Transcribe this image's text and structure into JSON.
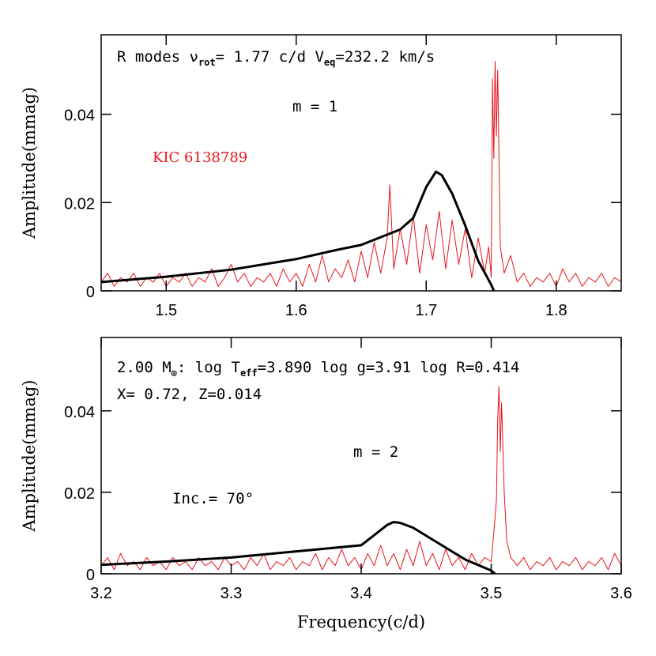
{
  "chart_data": [
    {
      "type": "line",
      "y_label": "Amplitude(mmag)",
      "xlim": [
        1.45,
        1.85
      ],
      "ylim": [
        0,
        0.058
      ],
      "xticks": [
        1.5,
        1.6,
        1.7,
        1.8
      ],
      "yticks": [
        0,
        0.02,
        0.04
      ],
      "annotations": [
        {
          "parts": [
            "R modes  ν",
            "rot",
            "= 1.77 c/d  V",
            "eq",
            "=232.2 km/s"
          ]
        },
        {
          "parts": [
            "m = 1"
          ]
        },
        {
          "parts": [
            "KIC 6138789"
          ],
          "color": "#e8141c"
        }
      ],
      "series": [
        {
          "color": "#e8141c",
          "line_width": 1,
          "x": [
            1.45,
            1.455,
            1.46,
            1.465,
            1.47,
            1.475,
            1.48,
            1.485,
            1.49,
            1.495,
            1.5,
            1.505,
            1.51,
            1.515,
            1.52,
            1.525,
            1.53,
            1.535,
            1.54,
            1.545,
            1.55,
            1.555,
            1.56,
            1.565,
            1.57,
            1.575,
            1.58,
            1.585,
            1.59,
            1.595,
            1.6,
            1.605,
            1.61,
            1.615,
            1.62,
            1.625,
            1.63,
            1.635,
            1.64,
            1.645,
            1.65,
            1.655,
            1.66,
            1.665,
            1.67,
            1.672,
            1.675,
            1.68,
            1.685,
            1.69,
            1.695,
            1.7,
            1.705,
            1.71,
            1.715,
            1.72,
            1.725,
            1.73,
            1.735,
            1.74,
            1.745,
            1.748,
            1.75,
            1.751,
            1.752,
            1.753,
            1.754,
            1.755,
            1.757,
            1.76,
            1.765,
            1.77,
            1.775,
            1.78,
            1.785,
            1.79,
            1.795,
            1.8,
            1.805,
            1.81,
            1.815,
            1.82,
            1.825,
            1.83,
            1.835,
            1.84,
            1.845,
            1.85
          ],
          "values": [
            0.002,
            0.004,
            0.001,
            0.003,
            0.002,
            0.004,
            0.001,
            0.003,
            0.002,
            0.004,
            0.001,
            0.003,
            0.002,
            0.004,
            0.001,
            0.003,
            0.002,
            0.005,
            0.001,
            0.003,
            0.006,
            0.002,
            0.004,
            0.001,
            0.003,
            0.002,
            0.004,
            0.001,
            0.005,
            0.002,
            0.004,
            0.001,
            0.006,
            0.002,
            0.008,
            0.002,
            0.005,
            0.003,
            0.007,
            0.002,
            0.009,
            0.003,
            0.011,
            0.004,
            0.012,
            0.024,
            0.005,
            0.014,
            0.006,
            0.017,
            0.004,
            0.015,
            0.007,
            0.018,
            0.005,
            0.016,
            0.006,
            0.014,
            0.003,
            0.012,
            0.004,
            0.01,
            0.003,
            0.048,
            0.03,
            0.052,
            0.035,
            0.05,
            0.01,
            0.004,
            0.008,
            0.002,
            0.004,
            0.001,
            0.003,
            0.002,
            0.004,
            0.001,
            0.005,
            0.002,
            0.004,
            0.001,
            0.003,
            0.002,
            0.004,
            0.001,
            0.003,
            0.002
          ]
        },
        {
          "color": "#000000",
          "line_width": 3,
          "x": [
            1.45,
            1.5,
            1.55,
            1.6,
            1.63,
            1.65,
            1.68,
            1.69,
            1.7,
            1.7075,
            1.712,
            1.72,
            1.73,
            1.74,
            1.75,
            1.752
          ],
          "values": [
            0.002,
            0.0032,
            0.0048,
            0.0072,
            0.0092,
            0.0104,
            0.0139,
            0.0165,
            0.0235,
            0.027,
            0.0262,
            0.022,
            0.0148,
            0.0068,
            0.0014,
            0.0
          ]
        }
      ]
    },
    {
      "type": "line",
      "y_label": "Amplitude(mmag)",
      "x_label": "Frequency(c/d)",
      "xlim": [
        3.2,
        3.6
      ],
      "ylim": [
        0,
        0.058
      ],
      "xticks": [
        3.2,
        3.3,
        3.4,
        3.5,
        3.6
      ],
      "yticks": [
        0,
        0.02,
        0.04
      ],
      "annotations": [
        {
          "parts": [
            "2.00 M",
            "⊙",
            ":  log T",
            "eff",
            "=3.890  log g=3.91  log R=0.414"
          ]
        },
        {
          "parts": [
            "X= 0.72, Z=0.014"
          ]
        },
        {
          "parts": [
            "m = 2"
          ]
        },
        {
          "parts": [
            "Inc.=  70°"
          ]
        }
      ],
      "series": [
        {
          "color": "#e8141c",
          "line_width": 1,
          "x": [
            3.2,
            3.205,
            3.21,
            3.215,
            3.22,
            3.225,
            3.23,
            3.235,
            3.24,
            3.245,
            3.25,
            3.255,
            3.26,
            3.265,
            3.27,
            3.275,
            3.28,
            3.285,
            3.29,
            3.295,
            3.3,
            3.305,
            3.31,
            3.315,
            3.32,
            3.325,
            3.33,
            3.335,
            3.34,
            3.345,
            3.35,
            3.355,
            3.36,
            3.365,
            3.37,
            3.375,
            3.38,
            3.385,
            3.39,
            3.395,
            3.4,
            3.405,
            3.41,
            3.415,
            3.42,
            3.425,
            3.43,
            3.435,
            3.44,
            3.445,
            3.45,
            3.455,
            3.46,
            3.465,
            3.47,
            3.475,
            3.48,
            3.485,
            3.49,
            3.495,
            3.5,
            3.502,
            3.504,
            3.505,
            3.506,
            3.507,
            3.508,
            3.51,
            3.512,
            3.515,
            3.52,
            3.525,
            3.53,
            3.535,
            3.54,
            3.545,
            3.55,
            3.555,
            3.56,
            3.565,
            3.57,
            3.575,
            3.58,
            3.585,
            3.59,
            3.595,
            3.6
          ],
          "values": [
            0.002,
            0.004,
            0.001,
            0.005,
            0.002,
            0.003,
            0.001,
            0.004,
            0.002,
            0.003,
            0.001,
            0.004,
            0.002,
            0.003,
            0.001,
            0.004,
            0.002,
            0.003,
            0.001,
            0.004,
            0.002,
            0.003,
            0.001,
            0.004,
            0.002,
            0.005,
            0.001,
            0.003,
            0.002,
            0.004,
            0.001,
            0.003,
            0.002,
            0.005,
            0.001,
            0.004,
            0.002,
            0.006,
            0.002,
            0.004,
            0.001,
            0.005,
            0.002,
            0.007,
            0.002,
            0.005,
            0.001,
            0.006,
            0.002,
            0.008,
            0.002,
            0.005,
            0.001,
            0.006,
            0.002,
            0.004,
            0.001,
            0.005,
            0.002,
            0.004,
            0.003,
            0.01,
            0.018,
            0.038,
            0.046,
            0.03,
            0.042,
            0.02,
            0.008,
            0.004,
            0.002,
            0.004,
            0.001,
            0.003,
            0.002,
            0.004,
            0.001,
            0.003,
            0.002,
            0.004,
            0.001,
            0.003,
            0.002,
            0.004,
            0.001,
            0.005,
            0.002
          ]
        },
        {
          "color": "#000000",
          "line_width": 3,
          "x": [
            3.2,
            3.25,
            3.3,
            3.35,
            3.4,
            3.41,
            3.42,
            3.425,
            3.43,
            3.44,
            3.46,
            3.48,
            3.5,
            3.503
          ],
          "values": [
            0.0022,
            0.003,
            0.004,
            0.0055,
            0.007,
            0.0095,
            0.012,
            0.0127,
            0.0125,
            0.0113,
            0.0074,
            0.0035,
            0.0008,
            0.0
          ]
        }
      ]
    }
  ]
}
